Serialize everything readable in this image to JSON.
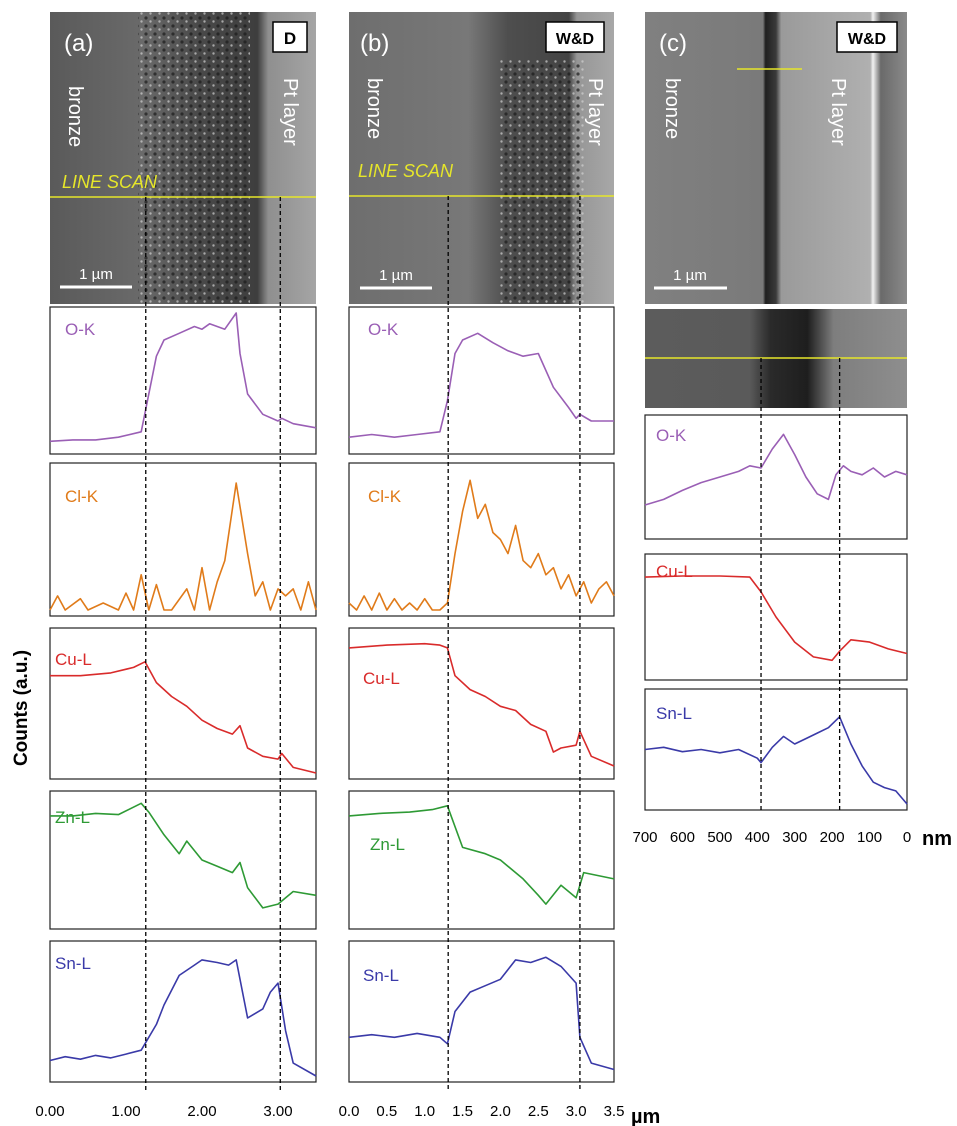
{
  "y_axis_label": "Counts (a.u.)",
  "panels": [
    {
      "letter": "(a)",
      "badge": "D",
      "left_label": "bronze",
      "right_label": "Pt layer",
      "line_scan_label": "LINE SCAN",
      "scale_bar": "1 µm",
      "axis_unit": "",
      "tick_labels": [
        "0.00",
        "1.00",
        "2.00",
        "3.00"
      ]
    },
    {
      "letter": "(b)",
      "badge": "W&D",
      "left_label": "bronze",
      "right_label": "Pt layer",
      "line_scan_label": "LINE SCAN",
      "scale_bar": "1 µm",
      "axis_unit": "µm",
      "tick_labels": [
        "0.0",
        "0.5",
        "1.0",
        "1.5",
        "2.0",
        "2.5",
        "3.0",
        "3.5"
      ]
    },
    {
      "letter": "(c)",
      "badge": "W&D",
      "left_label": "bronze",
      "right_label": "Pt layer",
      "line_scan_label": "",
      "scale_bar": "1 µm",
      "axis_unit": "nm",
      "tick_labels": [
        "700",
        "600",
        "500",
        "400",
        "300",
        "200",
        "100",
        "0"
      ]
    }
  ],
  "colors": {
    "O-K": "#9a5fb5",
    "Cl-K": "#e07b1a",
    "Cu-L": "#d92b2b",
    "Zn-L": "#2e9a35",
    "Sn-L": "#3a3aa8",
    "scan_line": "#e6e62a"
  },
  "chart_data": [
    {
      "type": "line",
      "panel": "(a)",
      "badge": "D",
      "xlabel": "",
      "ylabel": "Counts (a.u.)",
      "xlim": [
        0,
        3.5
      ],
      "xticks": [
        0,
        1,
        2,
        3
      ],
      "markers": [
        1.26,
        3.03
      ],
      "series": [
        {
          "name": "O-K",
          "x": [
            0,
            0.3,
            0.6,
            0.9,
            1.2,
            1.3,
            1.4,
            1.5,
            1.7,
            1.9,
            2.0,
            2.1,
            2.3,
            2.45,
            2.5,
            2.6,
            2.8,
            3.0,
            3.05,
            3.2,
            3.5
          ],
          "y": [
            0.05,
            0.06,
            0.06,
            0.08,
            0.12,
            0.4,
            0.68,
            0.8,
            0.85,
            0.9,
            0.88,
            0.92,
            0.88,
            1.0,
            0.7,
            0.4,
            0.25,
            0.2,
            0.22,
            0.18,
            0.15
          ]
        },
        {
          "name": "Cl-K",
          "x": [
            0,
            0.1,
            0.2,
            0.4,
            0.5,
            0.7,
            0.9,
            1.0,
            1.1,
            1.2,
            1.3,
            1.4,
            1.5,
            1.6,
            1.8,
            1.9,
            2.0,
            2.1,
            2.2,
            2.3,
            2.45,
            2.6,
            2.7,
            2.8,
            2.9,
            3.0,
            3.1,
            3.2,
            3.3,
            3.4,
            3.5
          ],
          "y": [
            0,
            0.1,
            0,
            0.08,
            0,
            0.05,
            0,
            0.12,
            0,
            0.25,
            0,
            0.18,
            0,
            0,
            0.15,
            0,
            0.3,
            0,
            0.2,
            0.35,
            0.9,
            0.4,
            0.1,
            0.2,
            0,
            0.15,
            0.1,
            0.15,
            0,
            0.2,
            0
          ]
        },
        {
          "name": "Cu-L",
          "x": [
            0,
            0.4,
            0.8,
            1.1,
            1.25,
            1.4,
            1.6,
            1.8,
            2.0,
            2.2,
            2.4,
            2.5,
            2.6,
            2.8,
            3.0,
            3.05,
            3.2,
            3.5
          ],
          "y": [
            0.7,
            0.7,
            0.72,
            0.76,
            0.8,
            0.65,
            0.55,
            0.48,
            0.38,
            0.32,
            0.28,
            0.34,
            0.18,
            0.12,
            0.1,
            0.14,
            0.04,
            0.0
          ]
        },
        {
          "name": "Zn-L",
          "x": [
            0,
            0.3,
            0.6,
            0.9,
            1.2,
            1.3,
            1.5,
            1.7,
            1.8,
            2.0,
            2.2,
            2.4,
            2.5,
            2.6,
            2.8,
            3.0,
            3.2,
            3.5
          ],
          "y": [
            0.85,
            0.85,
            0.87,
            0.86,
            0.95,
            0.88,
            0.7,
            0.55,
            0.65,
            0.5,
            0.45,
            0.4,
            0.48,
            0.28,
            0.12,
            0.15,
            0.25,
            0.22
          ]
        },
        {
          "name": "Sn-L",
          "x": [
            0,
            0.2,
            0.4,
            0.6,
            0.8,
            1.0,
            1.2,
            1.4,
            1.5,
            1.7,
            1.9,
            2.0,
            2.2,
            2.35,
            2.45,
            2.6,
            2.8,
            2.9,
            3.0,
            3.1,
            3.2,
            3.5
          ],
          "y": [
            0.12,
            0.15,
            0.13,
            0.16,
            0.14,
            0.17,
            0.2,
            0.4,
            0.55,
            0.78,
            0.86,
            0.9,
            0.88,
            0.86,
            0.9,
            0.45,
            0.52,
            0.65,
            0.72,
            0.35,
            0.1,
            0.0
          ]
        }
      ]
    },
    {
      "type": "line",
      "panel": "(b)",
      "badge": "W&D",
      "xlabel": "µm",
      "ylabel": "Counts (a.u.)",
      "xlim": [
        0,
        3.5
      ],
      "xticks": [
        0,
        0.5,
        1.0,
        1.5,
        2.0,
        2.5,
        3.0,
        3.5
      ],
      "markers": [
        1.31,
        3.05
      ],
      "series": [
        {
          "name": "O-K",
          "x": [
            0,
            0.3,
            0.6,
            0.9,
            1.2,
            1.3,
            1.4,
            1.5,
            1.7,
            1.9,
            2.1,
            2.3,
            2.5,
            2.7,
            2.9,
            3.0,
            3.05,
            3.2,
            3.5
          ],
          "y": [
            0.08,
            0.1,
            0.08,
            0.1,
            0.12,
            0.35,
            0.7,
            0.8,
            0.85,
            0.78,
            0.72,
            0.68,
            0.7,
            0.45,
            0.3,
            0.22,
            0.25,
            0.2,
            0.2
          ]
        },
        {
          "name": "Cl-K",
          "x": [
            0,
            0.1,
            0.2,
            0.3,
            0.4,
            0.5,
            0.6,
            0.7,
            0.8,
            0.9,
            1.0,
            1.1,
            1.2,
            1.3,
            1.4,
            1.5,
            1.6,
            1.7,
            1.8,
            1.9,
            2.0,
            2.1,
            2.2,
            2.3,
            2.4,
            2.5,
            2.6,
            2.7,
            2.8,
            2.9,
            3.0,
            3.1,
            3.2,
            3.3,
            3.4,
            3.5
          ],
          "y": [
            0.05,
            0.0,
            0.1,
            0.0,
            0.12,
            0.0,
            0.08,
            0.0,
            0.05,
            0.0,
            0.08,
            0.0,
            0.0,
            0.05,
            0.4,
            0.7,
            0.92,
            0.65,
            0.75,
            0.55,
            0.5,
            0.4,
            0.6,
            0.35,
            0.3,
            0.4,
            0.25,
            0.3,
            0.15,
            0.25,
            0.1,
            0.2,
            0.05,
            0.15,
            0.2,
            0.1
          ]
        },
        {
          "name": "Cu-L",
          "x": [
            0,
            0.5,
            1.0,
            1.2,
            1.3,
            1.4,
            1.6,
            1.8,
            2.0,
            2.2,
            2.4,
            2.6,
            2.7,
            2.8,
            3.0,
            3.05,
            3.2,
            3.5
          ],
          "y": [
            0.9,
            0.92,
            0.93,
            0.92,
            0.9,
            0.7,
            0.6,
            0.55,
            0.48,
            0.45,
            0.35,
            0.3,
            0.15,
            0.18,
            0.2,
            0.3,
            0.12,
            0.05
          ]
        },
        {
          "name": "Zn-L",
          "x": [
            0,
            0.4,
            0.8,
            1.1,
            1.3,
            1.5,
            1.8,
            2.0,
            2.3,
            2.5,
            2.6,
            2.8,
            3.0,
            3.1,
            3.5
          ],
          "y": [
            0.85,
            0.87,
            0.88,
            0.9,
            0.93,
            0.6,
            0.55,
            0.5,
            0.35,
            0.22,
            0.15,
            0.3,
            0.2,
            0.4,
            0.35
          ]
        },
        {
          "name": "Sn-L",
          "x": [
            0,
            0.3,
            0.6,
            0.9,
            1.2,
            1.3,
            1.4,
            1.6,
            1.8,
            2.0,
            2.2,
            2.4,
            2.6,
            2.8,
            3.0,
            3.05,
            3.2,
            3.5
          ],
          "y": [
            0.3,
            0.32,
            0.3,
            0.33,
            0.3,
            0.25,
            0.5,
            0.65,
            0.7,
            0.75,
            0.9,
            0.88,
            0.92,
            0.85,
            0.72,
            0.3,
            0.1,
            0.05
          ]
        }
      ]
    },
    {
      "type": "line",
      "panel": "(c)",
      "badge": "W&D",
      "xlabel": "nm",
      "ylabel": "Counts (a.u.)",
      "xlim": [
        700,
        0
      ],
      "xticks": [
        700,
        600,
        500,
        400,
        300,
        200,
        100,
        0
      ],
      "markers": [
        390,
        180
      ],
      "series": [
        {
          "name": "O-K",
          "x": [
            700,
            650,
            600,
            550,
            500,
            450,
            420,
            390,
            360,
            330,
            300,
            270,
            240,
            210,
            190,
            170,
            150,
            120,
            90,
            60,
            30,
            0
          ],
          "y": [
            0.25,
            0.3,
            0.38,
            0.45,
            0.5,
            0.55,
            0.6,
            0.58,
            0.75,
            0.88,
            0.7,
            0.5,
            0.35,
            0.3,
            0.52,
            0.6,
            0.55,
            0.52,
            0.58,
            0.5,
            0.55,
            0.52
          ]
        },
        {
          "name": "Cu-L",
          "x": [
            700,
            600,
            500,
            420,
            390,
            350,
            300,
            250,
            200,
            180,
            150,
            100,
            50,
            0
          ],
          "y": [
            0.85,
            0.86,
            0.86,
            0.85,
            0.72,
            0.5,
            0.28,
            0.15,
            0.12,
            0.2,
            0.3,
            0.28,
            0.22,
            0.18
          ]
        },
        {
          "name": "Sn-L",
          "x": [
            700,
            650,
            600,
            550,
            500,
            450,
            400,
            390,
            360,
            330,
            300,
            270,
            240,
            210,
            180,
            150,
            120,
            90,
            60,
            30,
            0
          ],
          "y": [
            0.5,
            0.52,
            0.48,
            0.5,
            0.47,
            0.5,
            0.42,
            0.38,
            0.52,
            0.62,
            0.55,
            0.6,
            0.65,
            0.7,
            0.8,
            0.55,
            0.35,
            0.2,
            0.15,
            0.12,
            0.0
          ]
        }
      ]
    }
  ]
}
